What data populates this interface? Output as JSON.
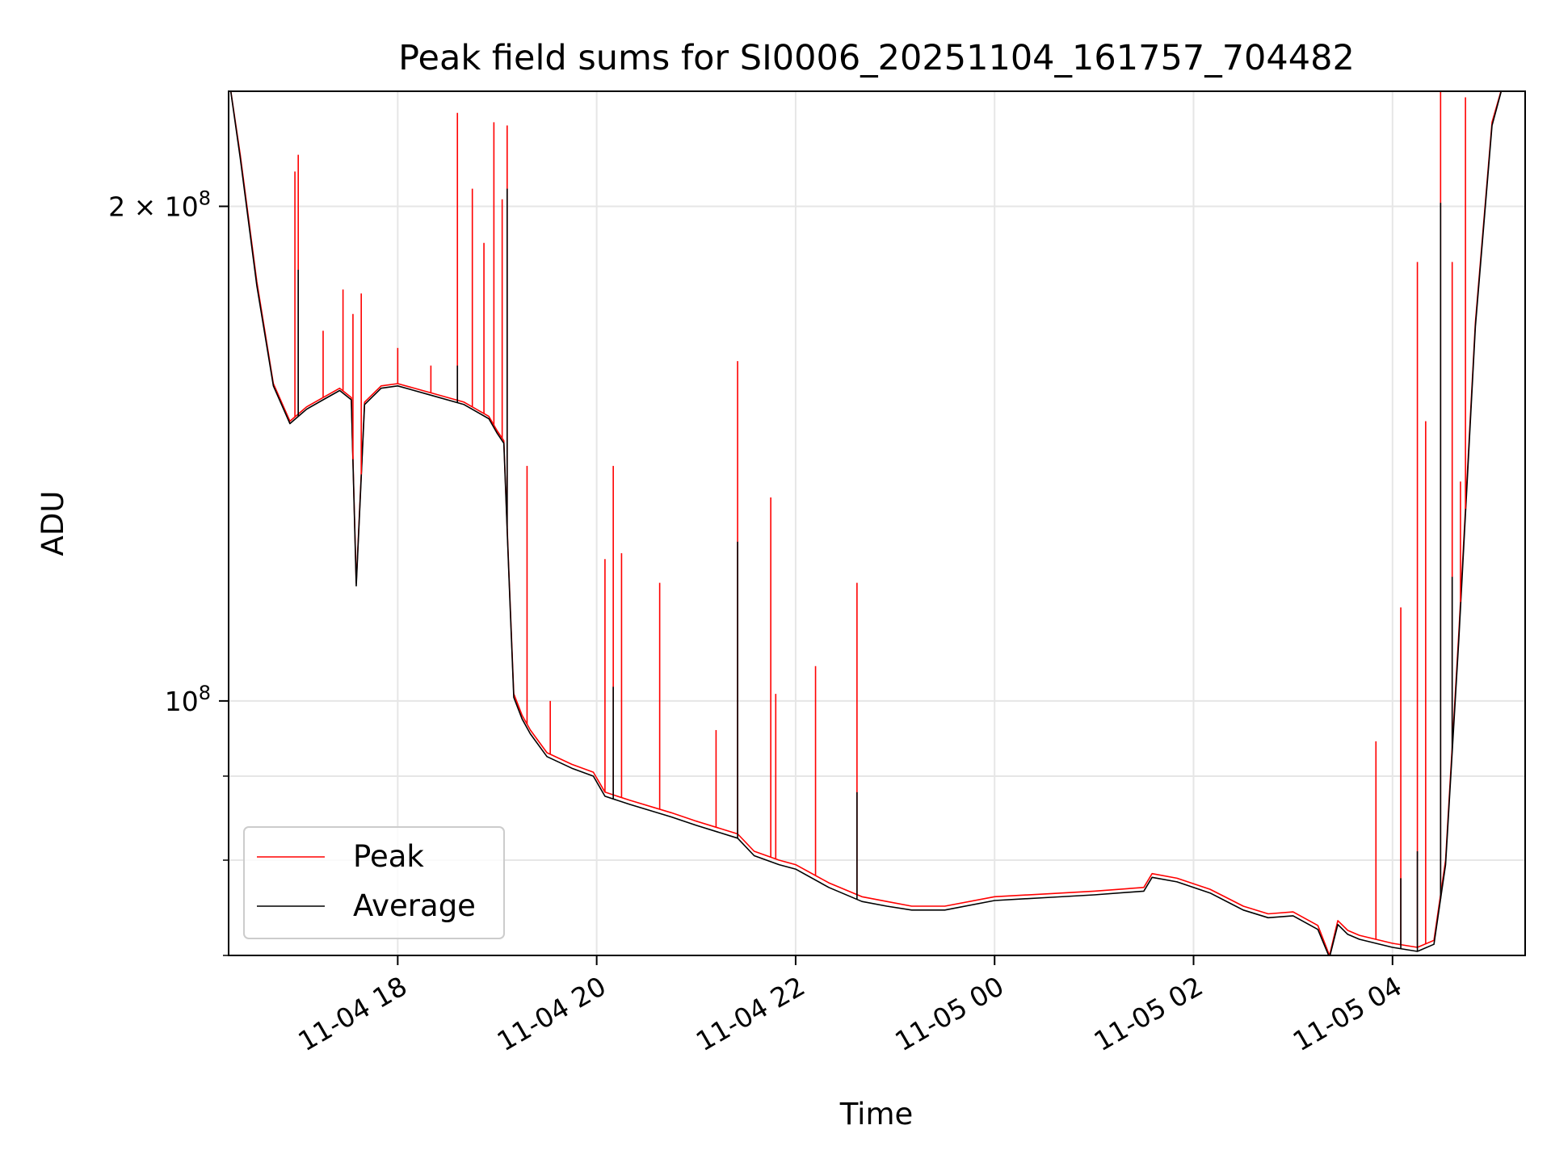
{
  "chart_data": {
    "type": "line",
    "title": "Peak field sums for SI0006_20251104_161757_704482",
    "xlabel": "Time",
    "ylabel": "ADU",
    "yscale": "log",
    "grid": true,
    "legend_placement": "lower-left",
    "xlim": [
      "2025-11-04 16:18",
      "2025-11-05 05:20"
    ],
    "ylim": [
      70000000,
      235000000
    ],
    "x_ticks": [
      {
        "value": "2025-11-04 18:00",
        "label": "11-04 18"
      },
      {
        "value": "2025-11-04 20:00",
        "label": "11-04 20"
      },
      {
        "value": "2025-11-04 22:00",
        "label": "11-04 22"
      },
      {
        "value": "2025-11-05 00:00",
        "label": "11-05 00"
      },
      {
        "value": "2025-11-05 02:00",
        "label": "11-05 02"
      },
      {
        "value": "2025-11-05 04:00",
        "label": "11-05 04"
      }
    ],
    "y_major_ticks": [
      {
        "value": 100000000,
        "mantissa": "",
        "exponent": "8"
      },
      {
        "value": 200000000,
        "mantissa": "2 × ",
        "exponent": "8"
      }
    ],
    "y_minor_ticks": [
      70000000,
      80000000,
      90000000
    ],
    "series": [
      {
        "name": "Peak",
        "color": "#ff0000",
        "x": [
          "2025-11-04 16:18",
          "2025-11-04 16:25",
          "2025-11-04 16:35",
          "2025-11-04 16:45",
          "2025-11-04 16:55",
          "2025-11-04 17:05",
          "2025-11-04 17:15",
          "2025-11-04 17:25",
          "2025-11-04 17:32",
          "2025-11-04 17:35",
          "2025-11-04 17:40",
          "2025-11-04 17:50",
          "2025-11-04 18:00",
          "2025-11-04 18:20",
          "2025-11-04 18:40",
          "2025-11-04 18:55",
          "2025-11-04 19:00",
          "2025-11-04 19:04",
          "2025-11-04 19:07",
          "2025-11-04 19:10",
          "2025-11-04 19:15",
          "2025-11-04 19:20",
          "2025-11-04 19:30",
          "2025-11-04 19:45",
          "2025-11-04 19:58",
          "2025-11-04 20:05",
          "2025-11-04 20:20",
          "2025-11-04 20:45",
          "2025-11-04 21:00",
          "2025-11-04 21:25",
          "2025-11-04 21:35",
          "2025-11-04 21:50",
          "2025-11-04 22:00",
          "2025-11-04 22:20",
          "2025-11-04 22:40",
          "2025-11-04 22:55",
          "2025-11-04 23:10",
          "2025-11-04 23:30",
          "2025-11-05 00:00",
          "2025-11-05 00:30",
          "2025-11-05 01:00",
          "2025-11-05 01:30",
          "2025-11-05 01:35",
          "2025-11-05 01:50",
          "2025-11-05 02:10",
          "2025-11-05 02:30",
          "2025-11-05 02:45",
          "2025-11-05 03:00",
          "2025-11-05 03:15",
          "2025-11-05 03:22",
          "2025-11-05 03:27",
          "2025-11-05 03:33",
          "2025-11-05 03:40",
          "2025-11-05 04:00",
          "2025-11-05 04:15",
          "2025-11-05 04:25",
          "2025-11-05 04:32",
          "2025-11-05 04:40",
          "2025-11-05 04:50",
          "2025-11-05 05:00",
          "2025-11-05 05:08",
          "2025-11-05 05:15",
          "2025-11-05 05:20"
        ],
        "y": [
          240000000,
          215000000,
          180000000,
          156000000,
          148000000,
          151000000,
          153000000,
          155000000,
          153000000,
          118000000,
          152000000,
          155500000,
          156000000,
          154000000,
          152000000,
          149000000,
          146000000,
          144000000,
          120000000,
          101000000,
          98000000,
          96000000,
          93000000,
          91500000,
          90500000,
          88000000,
          87000000,
          85500000,
          84500000,
          83000000,
          81000000,
          80000000,
          79500000,
          77500000,
          76000000,
          75500000,
          75000000,
          75000000,
          76000000,
          76300000,
          76600000,
          77000000,
          78500000,
          78000000,
          76800000,
          75000000,
          74200000,
          74400000,
          73000000,
          70000000,
          73500000,
          72500000,
          72000000,
          71200000,
          70800000,
          71500000,
          80000000,
          110000000,
          170000000,
          225000000,
          240000000,
          240000000,
          240000000
        ]
      },
      {
        "name": "Average",
        "color": "#000000",
        "x": [
          "2025-11-04 16:18",
          "2025-11-04 16:25",
          "2025-11-04 16:35",
          "2025-11-04 16:45",
          "2025-11-04 16:55",
          "2025-11-04 17:05",
          "2025-11-04 17:15",
          "2025-11-04 17:25",
          "2025-11-04 17:32",
          "2025-11-04 17:35",
          "2025-11-04 17:40",
          "2025-11-04 17:50",
          "2025-11-04 18:00",
          "2025-11-04 18:20",
          "2025-11-04 18:40",
          "2025-11-04 18:55",
          "2025-11-04 19:00",
          "2025-11-04 19:04",
          "2025-11-04 19:07",
          "2025-11-04 19:10",
          "2025-11-04 19:15",
          "2025-11-04 19:20",
          "2025-11-04 19:30",
          "2025-11-04 19:45",
          "2025-11-04 19:58",
          "2025-11-04 20:05",
          "2025-11-04 20:20",
          "2025-11-04 20:45",
          "2025-11-04 21:00",
          "2025-11-04 21:25",
          "2025-11-04 21:35",
          "2025-11-04 21:50",
          "2025-11-04 22:00",
          "2025-11-04 22:20",
          "2025-11-04 22:40",
          "2025-11-04 22:55",
          "2025-11-04 23:10",
          "2025-11-04 23:30",
          "2025-11-05 00:00",
          "2025-11-05 00:30",
          "2025-11-05 01:00",
          "2025-11-05 01:30",
          "2025-11-05 01:35",
          "2025-11-05 01:50",
          "2025-11-05 02:10",
          "2025-11-05 02:30",
          "2025-11-05 02:45",
          "2025-11-05 03:00",
          "2025-11-05 03:15",
          "2025-11-05 03:22",
          "2025-11-05 03:27",
          "2025-11-05 03:33",
          "2025-11-05 03:40",
          "2025-11-05 04:00",
          "2025-11-05 04:15",
          "2025-11-05 04:25",
          "2025-11-05 04:32",
          "2025-11-05 04:40",
          "2025-11-05 04:50",
          "2025-11-05 05:00",
          "2025-11-05 05:08",
          "2025-11-05 05:15",
          "2025-11-05 05:20"
        ],
        "y": [
          240000000,
          214000000,
          179000000,
          155500000,
          147500000,
          150500000,
          152500000,
          154500000,
          152500000,
          117500000,
          151500000,
          155000000,
          155500000,
          153500000,
          151500000,
          148500000,
          145500000,
          143500000,
          119500000,
          100500000,
          97500000,
          95500000,
          92500000,
          91000000,
          90000000,
          87500000,
          86500000,
          85000000,
          84000000,
          82500000,
          80500000,
          79500000,
          79000000,
          77000000,
          75500000,
          75000000,
          74600000,
          74600000,
          75600000,
          75900000,
          76200000,
          76600000,
          78100000,
          77600000,
          76400000,
          74600000,
          73800000,
          74000000,
          72600000,
          69800000,
          73100000,
          72100000,
          71600000,
          70800000,
          70400000,
          71100000,
          79500000,
          109000000,
          169000000,
          224000000,
          240000000,
          240000000,
          240000000
        ]
      }
    ],
    "spikes": {
      "Peak": [
        {
          "x": "2025-11-04 16:58",
          "y": 210000000
        },
        {
          "x": "2025-11-04 17:00",
          "y": 215000000
        },
        {
          "x": "2025-11-04 17:15",
          "y": 168000000
        },
        {
          "x": "2025-11-04 17:27",
          "y": 178000000
        },
        {
          "x": "2025-11-04 17:33",
          "y": 172000000
        },
        {
          "x": "2025-11-04 17:38",
          "y": 177000000
        },
        {
          "x": "2025-11-04 18:00",
          "y": 164000000
        },
        {
          "x": "2025-11-04 18:20",
          "y": 160000000
        },
        {
          "x": "2025-11-04 18:36",
          "y": 228000000
        },
        {
          "x": "2025-11-04 18:45",
          "y": 205000000
        },
        {
          "x": "2025-11-04 18:52",
          "y": 190000000
        },
        {
          "x": "2025-11-04 18:58",
          "y": 225000000
        },
        {
          "x": "2025-11-04 19:03",
          "y": 202000000
        },
        {
          "x": "2025-11-04 19:06",
          "y": 224000000
        },
        {
          "x": "2025-11-04 19:18",
          "y": 139000000
        },
        {
          "x": "2025-11-04 19:32",
          "y": 100000000
        },
        {
          "x": "2025-11-04 20:05",
          "y": 122000000
        },
        {
          "x": "2025-11-04 20:10",
          "y": 139000000
        },
        {
          "x": "2025-11-04 20:15",
          "y": 123000000
        },
        {
          "x": "2025-11-04 20:38",
          "y": 118000000
        },
        {
          "x": "2025-11-04 21:12",
          "y": 96000000
        },
        {
          "x": "2025-11-04 21:25",
          "y": 161000000
        },
        {
          "x": "2025-11-04 21:45",
          "y": 133000000
        },
        {
          "x": "2025-11-04 21:48",
          "y": 101000000
        },
        {
          "x": "2025-11-04 22:12",
          "y": 105000000
        },
        {
          "x": "2025-11-04 22:37",
          "y": 118000000
        },
        {
          "x": "2025-11-05 03:50",
          "y": 94500000
        },
        {
          "x": "2025-11-05 04:05",
          "y": 114000000
        },
        {
          "x": "2025-11-05 04:15",
          "y": 185000000
        },
        {
          "x": "2025-11-05 04:20",
          "y": 148000000
        },
        {
          "x": "2025-11-05 04:29",
          "y": 238000000
        },
        {
          "x": "2025-11-05 04:36",
          "y": 185000000
        },
        {
          "x": "2025-11-05 04:41",
          "y": 136000000
        },
        {
          "x": "2025-11-05 04:44",
          "y": 233000000
        }
      ],
      "Average": [
        {
          "x": "2025-11-04 17:00",
          "y": 183000000
        },
        {
          "x": "2025-11-04 18:36",
          "y": 160000000
        },
        {
          "x": "2025-11-04 19:06",
          "y": 205000000
        },
        {
          "x": "2025-11-04 20:10",
          "y": 102000000
        },
        {
          "x": "2025-11-04 21:25",
          "y": 125000000
        },
        {
          "x": "2025-11-04 22:37",
          "y": 88000000
        },
        {
          "x": "2025-11-05 04:05",
          "y": 78000000
        },
        {
          "x": "2025-11-05 04:15",
          "y": 81000000
        },
        {
          "x": "2025-11-05 04:29",
          "y": 201000000
        },
        {
          "x": "2025-11-05 04:36",
          "y": 119000000
        }
      ]
    }
  }
}
